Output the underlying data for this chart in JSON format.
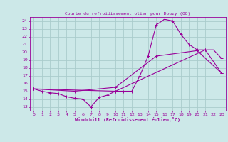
{
  "title": "Courbe du refroidissement olien pour Douzy (08)",
  "xlabel": "Windchill (Refroidissement éolien,°C)",
  "x_ticks": [
    0,
    1,
    2,
    3,
    4,
    5,
    6,
    7,
    8,
    9,
    10,
    11,
    12,
    13,
    14,
    15,
    16,
    17,
    18,
    19,
    20,
    21,
    22,
    23
  ],
  "xlim": [
    -0.5,
    23.5
  ],
  "ylim": [
    12.5,
    24.5
  ],
  "y_ticks": [
    13,
    14,
    15,
    16,
    17,
    18,
    19,
    20,
    21,
    22,
    23,
    24
  ],
  "bg_color": "#cce8e8",
  "grid_color": "#aacccc",
  "line_color": "#990099",
  "line1_x": [
    0,
    1,
    2,
    3,
    4,
    5,
    6,
    7,
    8,
    9,
    10,
    11,
    12,
    13,
    14,
    15,
    16,
    17,
    18,
    19,
    20,
    21,
    22,
    23
  ],
  "line1_y": [
    15.3,
    15.0,
    14.8,
    14.7,
    14.3,
    14.1,
    14.0,
    13.0,
    14.2,
    14.5,
    15.0,
    15.0,
    15.0,
    17.0,
    19.5,
    23.5,
    24.2,
    24.0,
    22.3,
    21.0,
    20.3,
    20.3,
    20.3,
    19.2
  ],
  "line2_x": [
    0,
    10,
    21,
    23
  ],
  "line2_y": [
    15.3,
    15.0,
    20.3,
    17.3
  ],
  "line3_x": [
    0,
    5,
    10,
    15,
    20,
    23
  ],
  "line3_y": [
    15.3,
    15.0,
    15.5,
    19.5,
    20.2,
    17.3
  ]
}
